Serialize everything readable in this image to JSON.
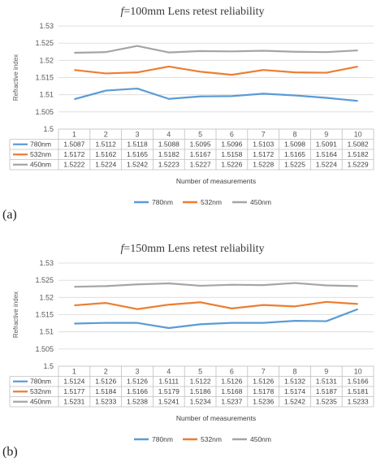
{
  "chart_data": [
    {
      "type": "line",
      "title_italic": "f",
      "title_rest": "=100mm Lens retest reliability",
      "ylabel": "Refractive index",
      "xlabel": "Number of measurements",
      "categories": [
        "1",
        "2",
        "3",
        "4",
        "5",
        "6",
        "7",
        "8",
        "9",
        "10"
      ],
      "ylim": [
        1.5,
        1.53
      ],
      "yticks": [
        "1.5",
        "1.505",
        "1.51",
        "1.515",
        "1.52",
        "1.525",
        "1.53"
      ],
      "legend_position": "bottom",
      "series": [
        {
          "name": "780nm",
          "color": "#5b9bd5",
          "values": [
            1.5087,
            1.5112,
            1.5118,
            1.5088,
            1.5095,
            1.5096,
            1.5103,
            1.5098,
            1.5091,
            1.5082
          ]
        },
        {
          "name": "532nm",
          "color": "#ed7d31",
          "values": [
            1.5172,
            1.5162,
            1.5165,
            1.5182,
            1.5167,
            1.5158,
            1.5172,
            1.5165,
            1.5164,
            1.5182
          ]
        },
        {
          "name": "450nm",
          "color": "#a5a5a5",
          "values": [
            1.5222,
            1.5224,
            1.5242,
            1.5223,
            1.5227,
            1.5226,
            1.5228,
            1.5225,
            1.5224,
            1.5229
          ]
        }
      ],
      "table_text": [
        [
          "1.5087",
          "1.5112",
          "1.5118",
          "1.5088",
          "1.5095",
          "1.5096",
          "1.5103",
          "1.5098",
          "1.5091",
          "1.5082"
        ],
        [
          "1.5172",
          "1.5162",
          "1.5165",
          "1.5182",
          "1.5167",
          "1.5158",
          "1.5172",
          "1.5165",
          "1.5164",
          "1.5182"
        ],
        [
          "1.5222",
          "1.5224",
          "1.5242",
          "1.5223",
          "1.5227",
          "1.5226",
          "1.5228",
          "1.5225",
          "1.5224",
          "1.5229"
        ]
      ],
      "panel_label": "(a)"
    },
    {
      "type": "line",
      "title_italic": "f",
      "title_rest": "=150mm Lens retest reliability",
      "ylabel": "Refractive index",
      "xlabel": "Number of measurements",
      "categories": [
        "1",
        "2",
        "3",
        "4",
        "5",
        "6",
        "7",
        "8",
        "9",
        "10"
      ],
      "ylim": [
        1.5,
        1.53
      ],
      "yticks": [
        "1.5",
        "1.505",
        "1.51",
        "1.515",
        "1.52",
        "1.525",
        "1.53"
      ],
      "legend_position": "bottom",
      "series": [
        {
          "name": "780nm",
          "color": "#5b9bd5",
          "values": [
            1.5124,
            1.5126,
            1.5126,
            1.5111,
            1.5122,
            1.5126,
            1.5126,
            1.5132,
            1.5131,
            1.5166
          ]
        },
        {
          "name": "532nm",
          "color": "#ed7d31",
          "values": [
            1.5177,
            1.5184,
            1.5166,
            1.5179,
            1.5186,
            1.5168,
            1.5178,
            1.5174,
            1.5187,
            1.5181
          ]
        },
        {
          "name": "450nm",
          "color": "#a5a5a5",
          "values": [
            1.5231,
            1.5233,
            1.5238,
            1.5241,
            1.5234,
            1.5237,
            1.5236,
            1.5242,
            1.5235,
            1.5233
          ]
        }
      ],
      "table_text": [
        [
          "1.5124",
          "1.5126",
          "1.5126",
          "1.5111",
          "1.5122",
          "1.5126",
          "1.5126",
          "1.5132",
          "1.5131",
          "1.5166"
        ],
        [
          "1.5177",
          "1.5184",
          "1.5166",
          "1.5179",
          "1.5186",
          "1.5168",
          "1.5178",
          "1.5174",
          "1.5187",
          "1.5181"
        ],
        [
          "1.5231",
          "1.5233",
          "1.5238",
          "1.5241",
          "1.5234",
          "1.5237",
          "1.5236",
          "1.5242",
          "1.5235",
          "1.5233"
        ]
      ],
      "panel_label": "(b)"
    }
  ]
}
